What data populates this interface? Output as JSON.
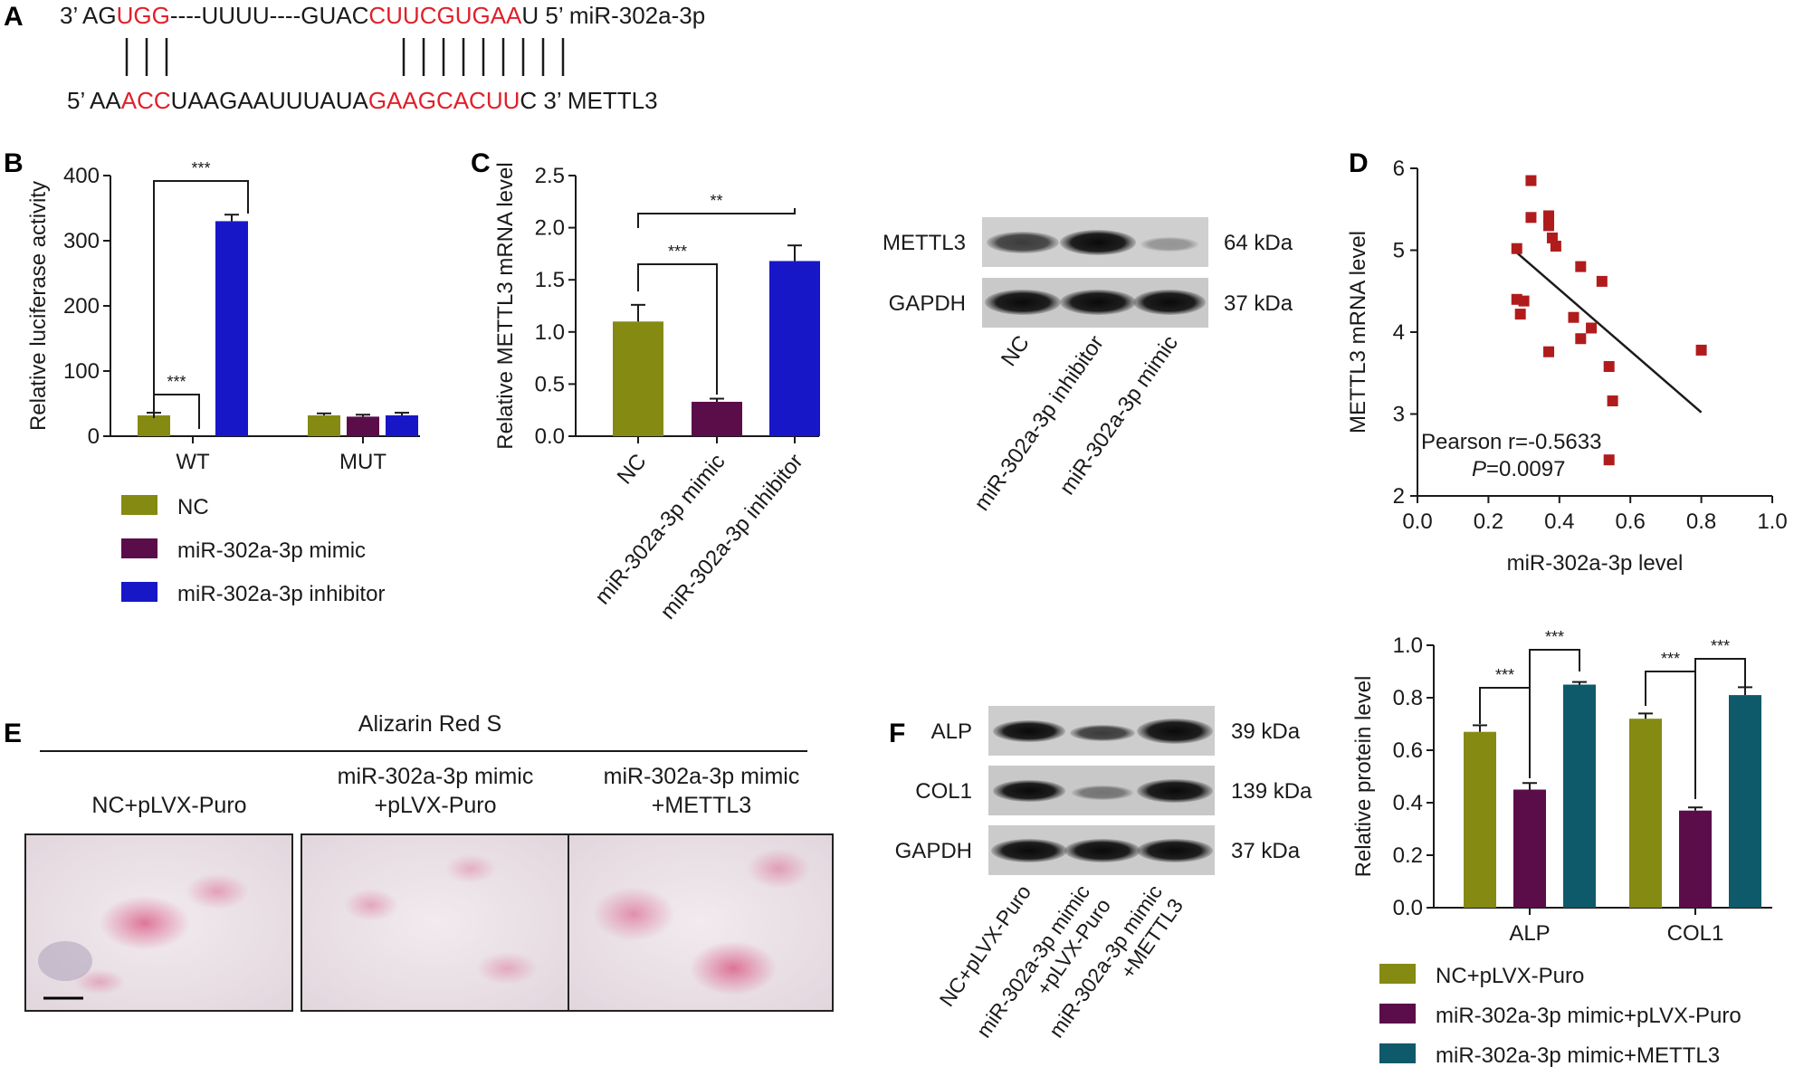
{
  "colors": {
    "olive": "#858a12",
    "purple": "#5b0d4a",
    "blue": "#1717c8",
    "teal": "#0e5a6a",
    "scatter": "#b01c1c"
  },
  "panelA": {
    "label": "A",
    "mir": {
      "prefix": "3’ AG",
      "seed1": "UGG",
      "mid": "----UUUU----GUAC",
      "seed2": "CUUCGUGAA",
      "suffix": "U 5’ miR-302a-3p"
    },
    "mettl3": {
      "prefix": "5’ AA",
      "seed1": "ACC",
      "mid": "UAAGAAUUUAUA",
      "seed2": "GAAGCACUU",
      "suffix": "C 3’ METTL3"
    }
  },
  "chart_data": [
    {
      "panel": "B",
      "type": "bar",
      "categories": [
        "WT",
        "MUT"
      ],
      "ylabel": "Relative luciferase activity",
      "ylim": [
        0,
        400
      ],
      "yticks": [
        0,
        100,
        200,
        300,
        400
      ],
      "series": [
        {
          "name": "NC",
          "values": [
            32,
            32
          ],
          "errors": [
            4,
            3
          ]
        },
        {
          "name": "miR-302a-3p mimic",
          "values": [
            0,
            30
          ],
          "errors": [
            0,
            3
          ]
        },
        {
          "name": "miR-302a-3p inhibitor",
          "values": [
            330,
            32
          ],
          "errors": [
            10,
            4
          ]
        }
      ],
      "significance": [
        "***",
        "***"
      ],
      "legend": "bottom"
    },
    {
      "panel": "C",
      "type": "bar",
      "categories": [
        "NC",
        "miR-302a-3p mimic",
        "miR-302a-3p inhibitor"
      ],
      "values": [
        1.1,
        0.33,
        1.68
      ],
      "errors": [
        0.16,
        0.03,
        0.15
      ],
      "ylabel": "Relative METTL3 mRNA level",
      "ylim": [
        0,
        2.5
      ],
      "yticks": [
        "0.0",
        "0.5",
        "1.0",
        "1.5",
        "2.0",
        "2.5"
      ],
      "significance": [
        "***",
        "**"
      ]
    },
    {
      "panel": "D",
      "type": "scatter",
      "xlabel": "miR-302a-3p level",
      "ylabel": "METTL3 mRNA level",
      "xlim": [
        0,
        1.0
      ],
      "ylim": [
        2,
        6
      ],
      "xticks": [
        "0.0",
        "0.2",
        "0.4",
        "0.6",
        "0.8",
        "1.0"
      ],
      "yticks": [
        "2",
        "3",
        "4",
        "5",
        "6"
      ],
      "points": [
        [
          0.32,
          5.85
        ],
        [
          0.32,
          5.4
        ],
        [
          0.37,
          5.42
        ],
        [
          0.37,
          5.3
        ],
        [
          0.38,
          5.15
        ],
        [
          0.39,
          5.05
        ],
        [
          0.28,
          5.02
        ],
        [
          0.28,
          4.4
        ],
        [
          0.3,
          4.38
        ],
        [
          0.29,
          4.22
        ],
        [
          0.46,
          4.8
        ],
        [
          0.52,
          4.62
        ],
        [
          0.44,
          4.18
        ],
        [
          0.49,
          4.05
        ],
        [
          0.46,
          3.92
        ],
        [
          0.37,
          3.76
        ],
        [
          0.54,
          3.58
        ],
        [
          0.55,
          3.16
        ],
        [
          0.8,
          3.78
        ],
        [
          0.54,
          2.44
        ]
      ],
      "fit": [
        [
          0.28,
          4.97
        ],
        [
          0.8,
          3.02
        ]
      ],
      "annotation": "Pearson r=-0.5633",
      "p_label": "P",
      "p_value": "=0.0097"
    },
    {
      "panel": "F",
      "type": "bar",
      "categories": [
        "ALP",
        "COL1"
      ],
      "ylabel": "Relative protein level",
      "ylim": [
        0,
        1.0
      ],
      "yticks": [
        "0.0",
        "0.2",
        "0.4",
        "0.6",
        "0.8",
        "1.0"
      ],
      "series": [
        {
          "name": "NC+pLVX-Puro",
          "values": [
            0.67,
            0.72
          ],
          "errors": [
            0.025,
            0.02
          ]
        },
        {
          "name": "miR-302a-3p mimic+pLVX-Puro",
          "values": [
            0.45,
            0.37
          ],
          "errors": [
            0.025,
            0.012
          ]
        },
        {
          "name": "miR-302a-3p mimic+METTL3",
          "values": [
            0.85,
            0.81
          ],
          "errors": [
            0.01,
            0.03
          ]
        }
      ],
      "significance": [
        "***",
        "***",
        "***",
        "***"
      ],
      "legend": "bottom"
    }
  ],
  "blotC": {
    "rows": [
      {
        "name": "METTL3",
        "size": "64 kDa"
      },
      {
        "name": "GAPDH",
        "size": "37 kDa"
      }
    ],
    "lanes": [
      "NC",
      "miR-302a-3p inhibitor",
      "miR-302a-3p mimic"
    ]
  },
  "panelE": {
    "label": "E",
    "title": "Alizarin Red S",
    "groups": [
      [
        "NC+pLVX-Puro"
      ],
      [
        "miR-302a-3p mimic",
        "+pLVX-Puro"
      ],
      [
        "miR-302a-3p mimic",
        "+METTL3"
      ]
    ]
  },
  "blotF": {
    "label": "F",
    "rows": [
      {
        "name": "ALP",
        "size": "39 kDa"
      },
      {
        "name": "COL1",
        "size": "139 kDa"
      },
      {
        "name": "GAPDH",
        "size": "37 kDa"
      }
    ],
    "lanes": [
      [
        "NC+pLVX-Puro"
      ],
      [
        "miR-302a-3p mimic",
        "+pLVX-Puro"
      ],
      [
        "miR-302a-3p mimic",
        "+METTL3"
      ]
    ]
  },
  "labels": {
    "B": "B",
    "C": "C",
    "D": "D"
  }
}
